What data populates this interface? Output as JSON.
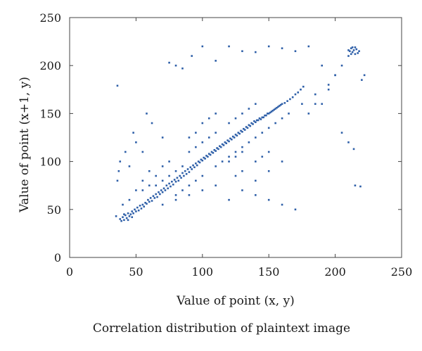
{
  "chart_data": {
    "type": "scatter",
    "title": "",
    "xlabel": "Value of point (x, y)",
    "ylabel": "Value of point (x+1, y)",
    "caption": "Correlation distribution of plaintext image",
    "xlim": [
      0,
      250
    ],
    "ylim": [
      0,
      250
    ],
    "xticks": [
      "0",
      "50",
      "100",
      "150",
      "200",
      "250"
    ],
    "yticks": [
      "0",
      "50",
      "100",
      "150",
      "200",
      "250"
    ],
    "grid": false,
    "legend": "none",
    "marker_color": "#2e5fa8",
    "series": [
      {
        "points": [
          [
            38,
            40
          ],
          [
            40,
            42
          ],
          [
            41,
            39
          ],
          [
            42,
            44
          ],
          [
            43,
            41
          ],
          [
            44,
            46
          ],
          [
            45,
            43
          ],
          [
            46,
            45
          ],
          [
            47,
            48
          ],
          [
            48,
            46
          ],
          [
            49,
            50
          ],
          [
            50,
            48
          ],
          [
            51,
            52
          ],
          [
            52,
            49
          ],
          [
            53,
            54
          ],
          [
            54,
            51
          ],
          [
            55,
            55
          ],
          [
            56,
            53
          ],
          [
            57,
            57
          ],
          [
            58,
            56
          ],
          [
            59,
            60
          ],
          [
            60,
            58
          ],
          [
            61,
            62
          ],
          [
            62,
            59
          ],
          [
            63,
            64
          ],
          [
            64,
            62
          ],
          [
            65,
            66
          ],
          [
            66,
            63
          ],
          [
            67,
            68
          ],
          [
            68,
            66
          ],
          [
            69,
            70
          ],
          [
            70,
            68
          ],
          [
            71,
            72
          ],
          [
            72,
            70
          ],
          [
            73,
            75
          ],
          [
            74,
            72
          ],
          [
            75,
            77
          ],
          [
            76,
            74
          ],
          [
            77,
            79
          ],
          [
            78,
            76
          ],
          [
            79,
            81
          ],
          [
            80,
            79
          ],
          [
            81,
            83
          ],
          [
            82,
            80
          ],
          [
            83,
            85
          ],
          [
            84,
            83
          ],
          [
            85,
            88
          ],
          [
            86,
            85
          ],
          [
            87,
            90
          ],
          [
            88,
            87
          ],
          [
            89,
            92
          ],
          [
            90,
            89
          ],
          [
            91,
            94
          ],
          [
            92,
            92
          ],
          [
            93,
            96
          ],
          [
            94,
            94
          ],
          [
            95,
            98
          ],
          [
            96,
            96
          ],
          [
            97,
            100
          ],
          [
            98,
            99
          ],
          [
            99,
            102
          ],
          [
            100,
            101
          ],
          [
            101,
            104
          ],
          [
            102,
            103
          ],
          [
            103,
            106
          ],
          [
            104,
            105
          ],
          [
            105,
            108
          ],
          [
            106,
            107
          ],
          [
            107,
            110
          ],
          [
            108,
            109
          ],
          [
            109,
            112
          ],
          [
            110,
            111
          ],
          [
            111,
            114
          ],
          [
            112,
            113
          ],
          [
            113,
            116
          ],
          [
            114,
            115
          ],
          [
            115,
            118
          ],
          [
            116,
            117
          ],
          [
            117,
            120
          ],
          [
            118,
            119
          ],
          [
            119,
            122
          ],
          [
            120,
            121
          ],
          [
            121,
            124
          ],
          [
            122,
            123
          ],
          [
            123,
            126
          ],
          [
            124,
            125
          ],
          [
            125,
            128
          ],
          [
            126,
            127
          ],
          [
            127,
            130
          ],
          [
            128,
            129
          ],
          [
            129,
            132
          ],
          [
            130,
            131
          ],
          [
            131,
            134
          ],
          [
            132,
            133
          ],
          [
            133,
            136
          ],
          [
            134,
            135
          ],
          [
            135,
            138
          ],
          [
            136,
            137
          ],
          [
            137,
            140
          ],
          [
            138,
            139
          ],
          [
            139,
            142
          ],
          [
            140,
            141
          ],
          [
            141,
            143
          ],
          [
            142,
            143
          ],
          [
            143,
            145
          ],
          [
            144,
            144
          ],
          [
            145,
            146
          ],
          [
            146,
            146
          ],
          [
            147,
            148
          ],
          [
            148,
            148
          ],
          [
            149,
            150
          ],
          [
            150,
            150
          ],
          [
            151,
            151
          ],
          [
            152,
            152
          ],
          [
            153,
            153
          ],
          [
            154,
            154
          ],
          [
            155,
            155
          ],
          [
            156,
            156
          ],
          [
            157,
            157
          ],
          [
            158,
            158
          ],
          [
            159,
            159
          ],
          [
            160,
            160
          ],
          [
            162,
            161
          ],
          [
            164,
            163
          ],
          [
            166,
            165
          ],
          [
            168,
            167
          ],
          [
            170,
            170
          ],
          [
            172,
            172
          ],
          [
            174,
            175
          ],
          [
            176,
            178
          ],
          [
            90,
            110
          ],
          [
            95,
            115
          ],
          [
            100,
            120
          ],
          [
            105,
            125
          ],
          [
            110,
            130
          ],
          [
            85,
            95
          ],
          [
            80,
            90
          ],
          [
            75,
            85
          ],
          [
            70,
            80
          ],
          [
            65,
            75
          ],
          [
            110,
            95
          ],
          [
            115,
            100
          ],
          [
            120,
            105
          ],
          [
            125,
            110
          ],
          [
            130,
            115
          ],
          [
            100,
            85
          ],
          [
            95,
            80
          ],
          [
            90,
            75
          ],
          [
            85,
            70
          ],
          [
            80,
            65
          ],
          [
            60,
            75
          ],
          [
            55,
            70
          ],
          [
            65,
            85
          ],
          [
            70,
            95
          ],
          [
            75,
            100
          ],
          [
            120,
            140
          ],
          [
            125,
            145
          ],
          [
            130,
            150
          ],
          [
            135,
            155
          ],
          [
            140,
            160
          ],
          [
            120,
            100
          ],
          [
            125,
            105
          ],
          [
            130,
            110
          ],
          [
            135,
            120
          ],
          [
            140,
            125
          ],
          [
            145,
            130
          ],
          [
            150,
            135
          ],
          [
            155,
            140
          ],
          [
            160,
            145
          ],
          [
            165,
            150
          ],
          [
            100,
            140
          ],
          [
            105,
            145
          ],
          [
            95,
            130
          ],
          [
            90,
            125
          ],
          [
            110,
            150
          ],
          [
            140,
            100
          ],
          [
            145,
            105
          ],
          [
            130,
            90
          ],
          [
            125,
            85
          ],
          [
            150,
            110
          ],
          [
            45,
            60
          ],
          [
            50,
            70
          ],
          [
            55,
            80
          ],
          [
            40,
            55
          ],
          [
            60,
            90
          ],
          [
            70,
            55
          ],
          [
            80,
            60
          ],
          [
            90,
            65
          ],
          [
            100,
            70
          ],
          [
            110,
            75
          ],
          [
            36,
            80
          ],
          [
            38,
            100
          ],
          [
            42,
            110
          ],
          [
            37,
            90
          ],
          [
            45,
            95
          ],
          [
            120,
            60
          ],
          [
            130,
            70
          ],
          [
            140,
            80
          ],
          [
            150,
            90
          ],
          [
            160,
            100
          ],
          [
            180,
            150
          ],
          [
            190,
            160
          ],
          [
            185,
            170
          ],
          [
            175,
            160
          ],
          [
            195,
            180
          ],
          [
            200,
            190
          ],
          [
            205,
            200
          ],
          [
            210,
            210
          ],
          [
            211,
            215
          ],
          [
            212,
            218
          ],
          [
            213,
            214
          ],
          [
            214,
            216
          ],
          [
            215,
            212
          ],
          [
            216,
            217
          ],
          [
            217,
            213
          ],
          [
            213,
            219
          ],
          [
            212,
            212
          ],
          [
            218,
            215
          ],
          [
            215,
            219
          ],
          [
            210,
            216
          ],
          [
            36,
            179
          ],
          [
            70,
            125
          ],
          [
            75,
            203
          ],
          [
            80,
            200
          ],
          [
            85,
            197
          ],
          [
            92,
            210
          ],
          [
            100,
            220
          ],
          [
            110,
            205
          ],
          [
            120,
            220
          ],
          [
            130,
            215
          ],
          [
            140,
            214
          ],
          [
            150,
            220
          ],
          [
            160,
            218
          ],
          [
            170,
            215
          ],
          [
            180,
            220
          ],
          [
            190,
            200
          ],
          [
            200,
            190
          ],
          [
            205,
            130
          ],
          [
            210,
            120
          ],
          [
            214,
            113
          ],
          [
            215,
            75
          ],
          [
            219,
            74
          ],
          [
            220,
            185
          ],
          [
            222,
            190
          ],
          [
            195,
            175
          ],
          [
            185,
            160
          ],
          [
            150,
            60
          ],
          [
            160,
            55
          ],
          [
            170,
            50
          ],
          [
            140,
            65
          ],
          [
            58,
            150
          ],
          [
            62,
            140
          ],
          [
            50,
            120
          ],
          [
            48,
            130
          ],
          [
            55,
            110
          ],
          [
            35,
            43
          ],
          [
            39,
            38
          ],
          [
            41,
            45
          ],
          [
            44,
            39
          ],
          [
            47,
            42
          ]
        ]
      }
    ]
  }
}
